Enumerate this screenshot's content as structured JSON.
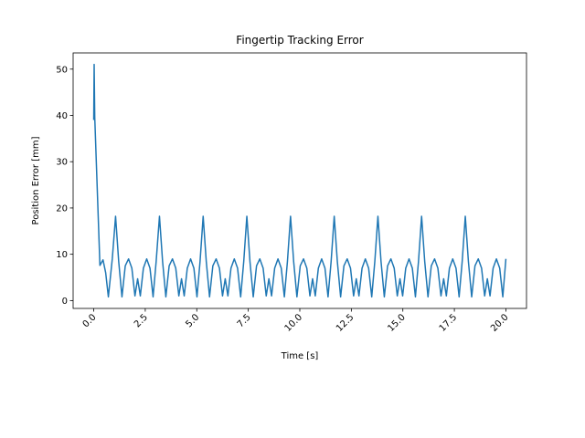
{
  "chart_data": {
    "type": "line",
    "title": "Fingertip Tracking Error",
    "xlabel": "Time [s]",
    "ylabel": "Position Error [mm]",
    "xlim": [
      -1,
      21
    ],
    "ylim": [
      -1.7,
      53.5
    ],
    "xticks": [
      {
        "value": 0,
        "label": "0.0"
      },
      {
        "value": 2.5,
        "label": "2.5"
      },
      {
        "value": 5,
        "label": "5.0"
      },
      {
        "value": 7.5,
        "label": "7.5"
      },
      {
        "value": 10,
        "label": "10.0"
      },
      {
        "value": 12.5,
        "label": "12.5"
      },
      {
        "value": 15,
        "label": "15.0"
      },
      {
        "value": 17.5,
        "label": "17.5"
      },
      {
        "value": 20,
        "label": "20.0"
      }
    ],
    "yticks": [
      0,
      10,
      20,
      30,
      40,
      50
    ],
    "grid": false,
    "x": [
      0,
      0.02,
      0.05,
      0.3,
      0.45,
      0.58,
      0.71,
      0.9,
      1.06,
      1.21,
      1.37,
      1.53,
      1.69,
      1.85,
      2.0,
      2.13,
      2.26,
      2.41,
      2.57,
      2.73,
      2.88,
      3.03,
      3.19,
      3.34,
      3.5,
      3.66,
      3.82,
      3.98,
      4.13,
      4.26,
      4.39,
      4.54,
      4.7,
      4.86,
      5.01,
      5.16,
      5.31,
      5.46,
      5.62,
      5.78,
      5.94,
      6.1,
      6.25,
      6.38,
      6.51,
      6.66,
      6.82,
      6.98,
      7.13,
      7.28,
      7.43,
      7.58,
      7.74,
      7.9,
      8.06,
      8.22,
      8.37,
      8.5,
      8.63,
      8.78,
      8.94,
      9.1,
      9.25,
      9.4,
      9.55,
      9.7,
      9.86,
      10.02,
      10.18,
      10.34,
      10.49,
      10.62,
      10.75,
      10.9,
      11.06,
      11.22,
      11.37,
      11.52,
      11.67,
      11.82,
      11.98,
      12.14,
      12.3,
      12.46,
      12.61,
      12.74,
      12.87,
      13.02,
      13.18,
      13.34,
      13.49,
      13.64,
      13.79,
      13.94,
      14.1,
      14.26,
      14.42,
      14.58,
      14.73,
      14.86,
      14.99,
      15.14,
      15.3,
      15.46,
      15.61,
      15.76,
      15.91,
      16.06,
      16.22,
      16.38,
      16.54,
      16.7,
      16.85,
      16.98,
      17.11,
      17.26,
      17.42,
      17.58,
      17.73,
      17.88,
      18.03,
      18.18,
      18.34,
      18.5,
      18.66,
      18.82,
      18.97,
      19.1,
      19.23,
      19.38,
      19.54,
      19.7,
      19.85,
      20.0
    ],
    "series": [
      {
        "name": "error",
        "color": "#1f77b4",
        "values": [
          39,
          51,
          39.5,
          7.6,
          8.8,
          6,
          0.8,
          9,
          18.2,
          8.5,
          0.8,
          7.5,
          9,
          7,
          1,
          4.7,
          1,
          7,
          9,
          7,
          0.8,
          8.5,
          18.2,
          8.5,
          0.8,
          7.5,
          9,
          7,
          1,
          4.7,
          1,
          7,
          9,
          7,
          0.8,
          8.5,
          18.2,
          8.5,
          0.8,
          7.5,
          9,
          7,
          1,
          4.7,
          1,
          7,
          9,
          7,
          0.8,
          8.5,
          18.2,
          8.5,
          0.8,
          7.5,
          9,
          7,
          1,
          4.7,
          1,
          7,
          9,
          7,
          0.8,
          8.5,
          18.2,
          8.5,
          0.8,
          7.5,
          9,
          7,
          1,
          4.7,
          1,
          7,
          9,
          7,
          0.8,
          8.5,
          18.2,
          8.5,
          0.8,
          7.5,
          9,
          7,
          1,
          4.7,
          1,
          7,
          9,
          7,
          0.8,
          8.5,
          18.2,
          8.5,
          0.8,
          7.5,
          9,
          7,
          1,
          4.7,
          1,
          7,
          9,
          7,
          0.8,
          8.5,
          18.2,
          8.5,
          0.8,
          7.5,
          9,
          7,
          1,
          4.7,
          1,
          7,
          9,
          7,
          0.8,
          8.5,
          18.2,
          8.5,
          0.8,
          7.5,
          9,
          7,
          1,
          4.7,
          1,
          7,
          9,
          7,
          0.8,
          9
        ]
      }
    ]
  }
}
